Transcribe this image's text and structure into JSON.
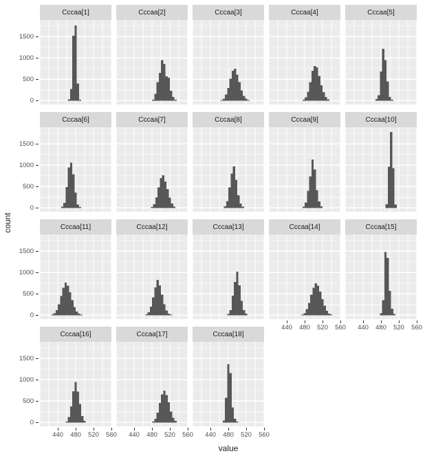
{
  "chart_data": {
    "type": "bar",
    "subtype": "faceted-histograms",
    "xlabel": "value",
    "ylabel": "count",
    "ncol": 5,
    "x_ticks": [
      440,
      480,
      520,
      560
    ],
    "y_ticks": [
      0,
      500,
      1000,
      1500
    ],
    "x_domain": [
      400,
      560
    ],
    "y_domain": [
      -90,
      1890
    ],
    "x_grid_major": [
      400,
      440,
      480,
      520,
      560
    ],
    "x_grid_minor": [
      420,
      460,
      500,
      540
    ],
    "y_grid_major": [
      0,
      500,
      1000,
      1500
    ],
    "y_grid_minor": [
      250,
      750,
      1250,
      1750
    ],
    "bin_width": 5,
    "colors": {
      "panel_bg": "#ebebeb",
      "strip_bg": "#d9d9d9",
      "grid": "#ffffff",
      "bar": "#575757",
      "tick_mark": "#333333",
      "tick_text": "#4d4d4d",
      "title_text": "#1a1a1a"
    },
    "facets": [
      {
        "label": "Cccaa[1]",
        "x0": 462.5,
        "heights": [
          30,
          270,
          1520,
          1760,
          400,
          25
        ]
      },
      {
        "label": "Cccaa[2]",
        "x0": 480,
        "heights": [
          25,
          160,
          430,
          650,
          950,
          860,
          570,
          540,
          230,
          85,
          25
        ]
      },
      {
        "label": "Cccaa[3]",
        "x0": 462.5,
        "heights": [
          15,
          50,
          140,
          300,
          510,
          700,
          745,
          610,
          430,
          240,
          110,
          45,
          15
        ]
      },
      {
        "label": "Cccaa[4]",
        "x0": 475,
        "heights": [
          25,
          80,
          210,
          430,
          700,
          810,
          780,
          580,
          360,
          200,
          90,
          30
        ]
      },
      {
        "label": "Cccaa[5]",
        "x0": 467.5,
        "heights": [
          40,
          130,
          680,
          1210,
          950,
          450,
          90,
          25
        ]
      },
      {
        "label": "Cccaa[6]",
        "x0": 447.5,
        "heights": [
          30,
          120,
          490,
          950,
          1060,
          790,
          360,
          80,
          20
        ]
      },
      {
        "label": "Cccaa[7]",
        "x0": 477.5,
        "heights": [
          20,
          90,
          250,
          480,
          700,
          760,
          620,
          440,
          240,
          100,
          30
        ]
      },
      {
        "label": "Cccaa[8]",
        "x0": 470,
        "heights": [
          35,
          160,
          480,
          800,
          975,
          660,
          300,
          100,
          30
        ]
      },
      {
        "label": "Cccaa[9]",
        "x0": 475,
        "heights": [
          30,
          130,
          400,
          740,
          1130,
          900,
          420,
          150,
          40
        ]
      },
      {
        "label": "Cccaa[10]",
        "x0": 490,
        "heights": [
          85,
          965,
          1780,
          930,
          80
        ]
      },
      {
        "label": "Cccaa[11]",
        "x0": 425,
        "heights": [
          15,
          45,
          120,
          260,
          450,
          640,
          760,
          690,
          540,
          350,
          190,
          90,
          35,
          15
        ]
      },
      {
        "label": "Cccaa[12]",
        "x0": 465,
        "heights": [
          20,
          70,
          200,
          420,
          650,
          830,
          700,
          480,
          260,
          110,
          40,
          15
        ]
      },
      {
        "label": "Cccaa[13]",
        "x0": 477.5,
        "heights": [
          30,
          120,
          460,
          780,
          1020,
          700,
          340,
          120,
          35
        ]
      },
      {
        "label": "Cccaa[14]",
        "x0": 472.5,
        "heights": [
          15,
          50,
          140,
          290,
          480,
          640,
          750,
          690,
          550,
          380,
          220,
          100,
          40,
          15
        ]
      },
      {
        "label": "Cccaa[15]",
        "x0": 477.5,
        "heights": [
          50,
          350,
          1480,
          1340,
          570,
          150,
          30
        ]
      },
      {
        "label": "Cccaa[16]",
        "x0": 457.5,
        "heights": [
          25,
          130,
          380,
          730,
          950,
          720,
          430,
          150,
          35
        ]
      },
      {
        "label": "Cccaa[17]",
        "x0": 480,
        "heights": [
          25,
          90,
          230,
          460,
          660,
          750,
          640,
          470,
          260,
          110,
          35
        ]
      },
      {
        "label": "Cccaa[18]",
        "x0": 467.5,
        "heights": [
          50,
          580,
          1370,
          1160,
          350,
          90,
          20
        ]
      }
    ]
  }
}
